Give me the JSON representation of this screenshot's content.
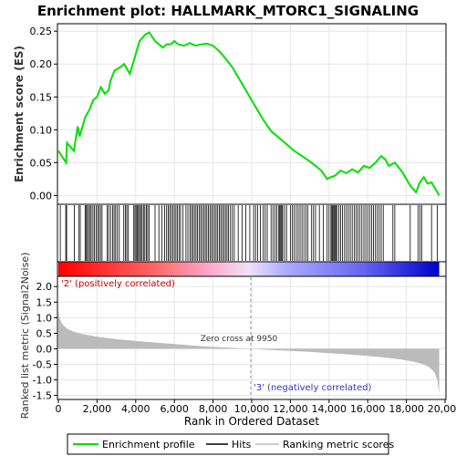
{
  "chart_data": {
    "type": "line",
    "title": "Enrichment plot: HALLMARK_MTORC1_SIGNALING",
    "xlabel": "Rank in Ordered Dataset",
    "ylabel_top": "Enrichment score (ES)",
    "ylabel_bottom": "Ranked list metric (Signal2Noise)",
    "xlim": [
      0,
      20000
    ],
    "x_ticks": [
      0,
      2000,
      4000,
      6000,
      8000,
      10000,
      12000,
      14000,
      16000,
      18000,
      20000
    ],
    "x_tick_labels": [
      "0",
      "2,000",
      "4,000",
      "6,000",
      "8,000",
      "10,000",
      "12,000",
      "14,000",
      "16,000",
      "18,000",
      "20,000"
    ],
    "es_ylim": [
      -0.012,
      0.26
    ],
    "es_ticks": [
      0.0,
      0.05,
      0.1,
      0.15,
      0.2,
      0.25
    ],
    "es_tick_labels": [
      "0.00",
      "0.05",
      "0.10",
      "0.15",
      "0.20",
      "0.25"
    ],
    "metric_ylim": [
      -1.6,
      2.3
    ],
    "metric_ticks": [
      -1.5,
      -1.0,
      -0.5,
      0.0,
      0.5,
      1.0,
      1.5,
      2.0
    ],
    "metric_tick_labels": [
      "-1.5",
      "-1.0",
      "-0.5",
      "0.0",
      "0.5",
      "1.0",
      "1.5",
      "2.0"
    ],
    "n_genes": 19700,
    "zero_cross_rank": 9950,
    "annotation_zero": "Zero cross at 9950",
    "annotation_pos": "'2' (positively correlated)",
    "annotation_neg": "'3' (negatively correlated)",
    "series": [
      {
        "name": "Enrichment profile",
        "color": "#00e000",
        "x": [
          0,
          400,
          450,
          800,
          1000,
          1100,
          1400,
          1600,
          1800,
          2000,
          2200,
          2400,
          2600,
          2700,
          2900,
          3200,
          3400,
          3700,
          3900,
          4200,
          4500,
          4700,
          5000,
          5400,
          5600,
          5800,
          6000,
          6200,
          6500,
          6800,
          7100,
          7400,
          7700,
          8000,
          8300,
          8600,
          9000,
          9400,
          9800,
          10200,
          10600,
          11000,
          11400,
          11800,
          12200,
          12600,
          13000,
          13300,
          13600,
          13900,
          14100,
          14300,
          14600,
          14900,
          15200,
          15500,
          15800,
          16100,
          16400,
          16700,
          16900,
          17100,
          17400,
          17800,
          18200,
          18500,
          18700,
          18900,
          19100,
          19300,
          19500,
          19700
        ],
        "y": [
          0.068,
          0.05,
          0.08,
          0.068,
          0.105,
          0.09,
          0.12,
          0.13,
          0.145,
          0.15,
          0.165,
          0.155,
          0.16,
          0.175,
          0.19,
          0.195,
          0.2,
          0.185,
          0.205,
          0.235,
          0.245,
          0.248,
          0.235,
          0.225,
          0.23,
          0.23,
          0.235,
          0.23,
          0.228,
          0.232,
          0.228,
          0.23,
          0.231,
          0.228,
          0.22,
          0.21,
          0.195,
          0.175,
          0.155,
          0.135,
          0.115,
          0.098,
          0.088,
          0.078,
          0.068,
          0.06,
          0.052,
          0.045,
          0.038,
          0.025,
          0.028,
          0.03,
          0.038,
          0.034,
          0.04,
          0.035,
          0.045,
          0.042,
          0.05,
          0.06,
          0.055,
          0.045,
          0.05,
          0.035,
          0.015,
          0.005,
          0.02,
          0.028,
          0.018,
          0.02,
          0.01,
          0.0
        ]
      },
      {
        "name": "Hits",
        "color": "#000000",
        "ranks": [
          100,
          380,
          430,
          820,
          1050,
          1130,
          1380,
          1430,
          1500,
          1560,
          1640,
          1700,
          1790,
          1870,
          1950,
          2030,
          2100,
          2180,
          2260,
          2520,
          2600,
          2700,
          2800,
          2880,
          2960,
          3050,
          3150,
          3380,
          3460,
          3540,
          3620,
          3900,
          3960,
          4020,
          4080,
          4140,
          4200,
          4260,
          4330,
          4400,
          4470,
          4550,
          4620,
          4700,
          5000,
          5200,
          5350,
          5500,
          5600,
          5680,
          5760,
          5840,
          5920,
          6000,
          6080,
          6160,
          6240,
          6320,
          6450,
          6600,
          6700,
          6800,
          6880,
          6960,
          7040,
          7120,
          7200,
          7280,
          7360,
          7440,
          7520,
          7600,
          7680,
          7760,
          7840,
          7920,
          8000,
          8080,
          8160,
          8240,
          8320,
          8400,
          8480,
          8560,
          8640,
          8720,
          8800,
          8900,
          9000,
          9100,
          9300,
          9500,
          9700,
          9900,
          10100,
          10200,
          10300,
          10450,
          10600,
          10700,
          10800,
          11000,
          11100,
          11200,
          11300,
          11400,
          11450,
          11500,
          11550,
          11600,
          11700,
          11800,
          12000,
          12100,
          12200,
          12300,
          12400,
          12500,
          12600,
          12700,
          12800,
          12900,
          13100,
          13200,
          13300,
          13500,
          13700,
          13900,
          14000,
          14100,
          14150,
          14200,
          14250,
          14300,
          14350,
          14400,
          14500,
          14600,
          14700,
          14800,
          14900,
          15000,
          15100,
          15200,
          15300,
          15400,
          15500,
          15600,
          15700,
          15800,
          15900,
          16000,
          16100,
          16200,
          16300,
          16400,
          16500,
          16600,
          16700,
          16800,
          17300,
          17400,
          18200,
          18600,
          18700,
          18800,
          19300,
          19600
        ]
      },
      {
        "name": "Ranking metric scores",
        "color": "#bbbbbb",
        "x": [
          0,
          50,
          150,
          300,
          500,
          800,
          1200,
          2000,
          3000,
          4000,
          5000,
          6000,
          7000,
          8000,
          9000,
          9950,
          11000,
          12000,
          13000,
          14000,
          15000,
          16000,
          17000,
          17800,
          18400,
          18900,
          19200,
          19450,
          19600,
          19700
        ],
        "y": [
          1.25,
          1.0,
          0.85,
          0.72,
          0.63,
          0.55,
          0.48,
          0.39,
          0.31,
          0.25,
          0.2,
          0.15,
          0.1,
          0.06,
          0.03,
          0.0,
          -0.04,
          -0.07,
          -0.1,
          -0.14,
          -0.18,
          -0.23,
          -0.29,
          -0.35,
          -0.42,
          -0.5,
          -0.6,
          -0.75,
          -1.0,
          -1.45
        ]
      }
    ],
    "legend": [
      "Enrichment profile",
      "Hits",
      "Ranking metric scores"
    ],
    "legend_placement": "bottom",
    "grid": true
  }
}
